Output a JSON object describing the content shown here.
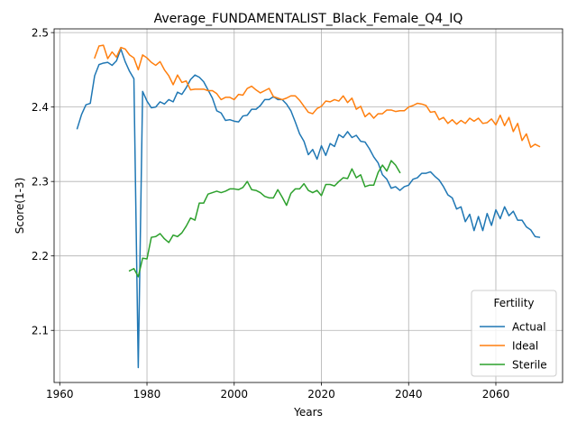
{
  "chart_data": {
    "type": "line",
    "title": "Average_FUNDAMENTALIST_Black_Female_Q4_IQ",
    "xlabel": "Years",
    "ylabel": "Score(1-3)",
    "xlim": [
      1958.7,
      2075.3
    ],
    "ylim": [
      2.03,
      2.505
    ],
    "xticks": [
      1960,
      1980,
      2000,
      2020,
      2040,
      2060
    ],
    "yticks": [
      2.1,
      2.2,
      2.3,
      2.4,
      2.5
    ],
    "xtick_labels": [
      "1960",
      "1980",
      "2000",
      "2020",
      "2040",
      "2060"
    ],
    "ytick_labels": [
      "2.1",
      "2.2",
      "2.3",
      "2.4",
      "2.5"
    ],
    "grid": true,
    "legend": {
      "title": "Fertility",
      "position": "lower right"
    },
    "series": [
      {
        "name": "Actual",
        "color": "#1f77b4",
        "x": [
          1964,
          1965,
          1966,
          1967,
          1968,
          1969,
          1970,
          1971,
          1972,
          1973,
          1974,
          1975,
          1976,
          1977,
          1978,
          1979,
          1980,
          1981,
          1982,
          1983,
          1984,
          1985,
          1986,
          1987,
          1988,
          1989,
          1990,
          1991,
          1992,
          1993,
          1994,
          1995,
          1996,
          1997,
          1998,
          1999,
          2000,
          2001,
          2002,
          2003,
          2004,
          2005,
          2006,
          2007,
          2008,
          2009,
          2010,
          2011,
          2012,
          2013,
          2014,
          2015,
          2016,
          2017,
          2018,
          2019,
          2020,
          2021,
          2022,
          2023,
          2024,
          2025,
          2026,
          2027,
          2028,
          2029,
          2030,
          2031,
          2032,
          2033,
          2034,
          2035,
          2036,
          2037,
          2038,
          2039,
          2040,
          2041,
          2042,
          2043,
          2044,
          2045,
          2046,
          2047,
          2048,
          2049,
          2050,
          2051,
          2052,
          2053,
          2054,
          2055,
          2056,
          2057,
          2058,
          2059,
          2060,
          2061,
          2062,
          2063,
          2064,
          2065,
          2066,
          2067,
          2068,
          2069,
          2070
        ],
        "values": [
          2.371,
          2.39,
          2.403,
          2.405,
          2.442,
          2.457,
          2.459,
          2.46,
          2.456,
          2.462,
          2.478,
          2.461,
          2.448,
          2.438,
          2.05,
          2.421,
          2.408,
          2.399,
          2.4,
          2.407,
          2.404,
          2.41,
          2.407,
          2.42,
          2.417,
          2.426,
          2.437,
          2.443,
          2.44,
          2.434,
          2.423,
          2.412,
          2.395,
          2.392,
          2.382,
          2.383,
          2.381,
          2.38,
          2.388,
          2.389,
          2.397,
          2.397,
          2.402,
          2.41,
          2.41,
          2.414,
          2.41,
          2.41,
          2.404,
          2.395,
          2.38,
          2.364,
          2.354,
          2.336,
          2.343,
          2.33,
          2.348,
          2.335,
          2.351,
          2.347,
          2.363,
          2.359,
          2.367,
          2.359,
          2.362,
          2.354,
          2.353,
          2.344,
          2.333,
          2.325,
          2.309,
          2.303,
          2.291,
          2.293,
          2.288,
          2.293,
          2.295,
          2.303,
          2.305,
          2.311,
          2.311,
          2.313,
          2.307,
          2.302,
          2.293,
          2.282,
          2.278,
          2.263,
          2.266,
          2.246,
          2.256,
          2.234,
          2.253,
          2.234,
          2.257,
          2.241,
          2.262,
          2.25,
          2.266,
          2.254,
          2.26,
          2.248,
          2.248,
          2.239,
          2.235,
          2.226,
          2.225
        ]
      },
      {
        "name": "Ideal",
        "color": "#ff7f0e",
        "x": [
          1968,
          1969,
          1970,
          1971,
          1972,
          1973,
          1974,
          1975,
          1976,
          1977,
          1978,
          1979,
          1980,
          1981,
          1982,
          1983,
          1984,
          1985,
          1986,
          1987,
          1988,
          1989,
          1990,
          1991,
          1992,
          1993,
          1994,
          1995,
          1996,
          1997,
          1998,
          1999,
          2000,
          2001,
          2002,
          2003,
          2004,
          2005,
          2006,
          2007,
          2008,
          2009,
          2010,
          2011,
          2012,
          2013,
          2014,
          2015,
          2016,
          2017,
          2018,
          2019,
          2020,
          2021,
          2022,
          2023,
          2024,
          2025,
          2026,
          2027,
          2028,
          2029,
          2030,
          2031,
          2032,
          2033,
          2034,
          2035,
          2036,
          2037,
          2038,
          2039,
          2040,
          2041,
          2042,
          2043,
          2044,
          2045,
          2046,
          2047,
          2048,
          2049,
          2050,
          2051,
          2052,
          2053,
          2054,
          2055,
          2056,
          2057,
          2058,
          2059,
          2060,
          2061,
          2062,
          2063,
          2064,
          2065,
          2066,
          2067,
          2068,
          2069,
          2070
        ],
        "values": [
          2.466,
          2.482,
          2.483,
          2.465,
          2.474,
          2.467,
          2.48,
          2.478,
          2.47,
          2.466,
          2.45,
          2.47,
          2.466,
          2.46,
          2.456,
          2.461,
          2.45,
          2.442,
          2.43,
          2.443,
          2.433,
          2.435,
          2.423,
          2.424,
          2.424,
          2.424,
          2.422,
          2.422,
          2.418,
          2.41,
          2.413,
          2.413,
          2.41,
          2.417,
          2.416,
          2.425,
          2.428,
          2.423,
          2.419,
          2.422,
          2.425,
          2.414,
          2.412,
          2.41,
          2.412,
          2.415,
          2.415,
          2.409,
          2.401,
          2.393,
          2.391,
          2.398,
          2.401,
          2.408,
          2.407,
          2.41,
          2.408,
          2.415,
          2.406,
          2.412,
          2.397,
          2.401,
          2.387,
          2.392,
          2.385,
          2.391,
          2.391,
          2.396,
          2.396,
          2.394,
          2.395,
          2.395,
          2.4,
          2.402,
          2.405,
          2.404,
          2.402,
          2.393,
          2.394,
          2.383,
          2.386,
          2.378,
          2.383,
          2.377,
          2.382,
          2.378,
          2.385,
          2.381,
          2.385,
          2.378,
          2.379,
          2.384,
          2.376,
          2.389,
          2.375,
          2.386,
          2.367,
          2.378,
          2.355,
          2.364,
          2.346,
          2.35,
          2.347
        ]
      },
      {
        "name": "Sterile",
        "color": "#2ca02c",
        "x": [
          1976,
          1977,
          1978,
          1979,
          1980,
          1981,
          1982,
          1983,
          1984,
          1985,
          1986,
          1987,
          1988,
          1989,
          1990,
          1991,
          1992,
          1993,
          1994,
          1995,
          1996,
          1997,
          1998,
          1999,
          2000,
          2001,
          2002,
          2003,
          2004,
          2005,
          2006,
          2007,
          2008,
          2009,
          2010,
          2011,
          2012,
          2013,
          2014,
          2015,
          2016,
          2017,
          2018,
          2019,
          2020,
          2021,
          2022,
          2023,
          2024,
          2025,
          2026,
          2027,
          2028,
          2029,
          2030,
          2031,
          2032,
          2033,
          2034,
          2035,
          2036,
          2037,
          2038
        ],
        "values": [
          2.18,
          2.183,
          2.172,
          2.197,
          2.196,
          2.225,
          2.226,
          2.23,
          2.223,
          2.218,
          2.228,
          2.226,
          2.231,
          2.24,
          2.251,
          2.248,
          2.271,
          2.271,
          2.283,
          2.285,
          2.287,
          2.285,
          2.287,
          2.29,
          2.29,
          2.289,
          2.292,
          2.3,
          2.289,
          2.288,
          2.285,
          2.28,
          2.278,
          2.278,
          2.289,
          2.279,
          2.268,
          2.284,
          2.29,
          2.29,
          2.297,
          2.288,
          2.285,
          2.288,
          2.281,
          2.296,
          2.296,
          2.294,
          2.3,
          2.305,
          2.304,
          2.317,
          2.305,
          2.309,
          2.293,
          2.295,
          2.295,
          2.312,
          2.322,
          2.314,
          2.328,
          2.322,
          2.312
        ]
      }
    ]
  }
}
